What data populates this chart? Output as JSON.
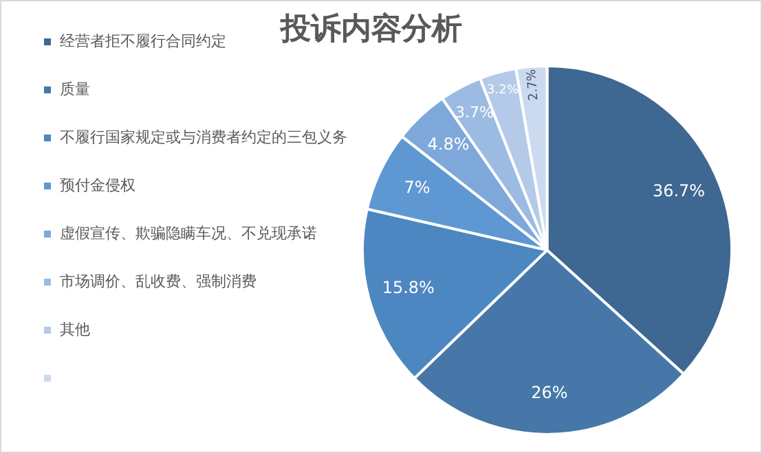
{
  "chart_data": {
    "type": "pie",
    "title": "投诉内容分析",
    "categories": [
      "经营者拒不履行合同约定",
      "质量",
      "不履行国家规定或与消费者约定的三包义务",
      "预付金侵权",
      "虚假宣传、欺骗隐瞒车况、不兑现承诺",
      "市场调价、乱收费、强制消费",
      "其他",
      null
    ],
    "values": [
      36.7,
      26,
      15.8,
      7,
      4.8,
      3.7,
      3.2,
      2.7
    ],
    "value_labels": [
      "36.7%",
      "26%",
      "15.8%",
      "7%",
      "4.8%",
      "3.7%",
      "3.2%",
      "2.7%"
    ],
    "colors": [
      "#3e6791",
      "#4677a8",
      "#4d87c2",
      "#5f97d3",
      "#7ea8da",
      "#9bbbe2",
      "#b4cae8",
      "#ccdaf0"
    ],
    "legend": "left"
  }
}
